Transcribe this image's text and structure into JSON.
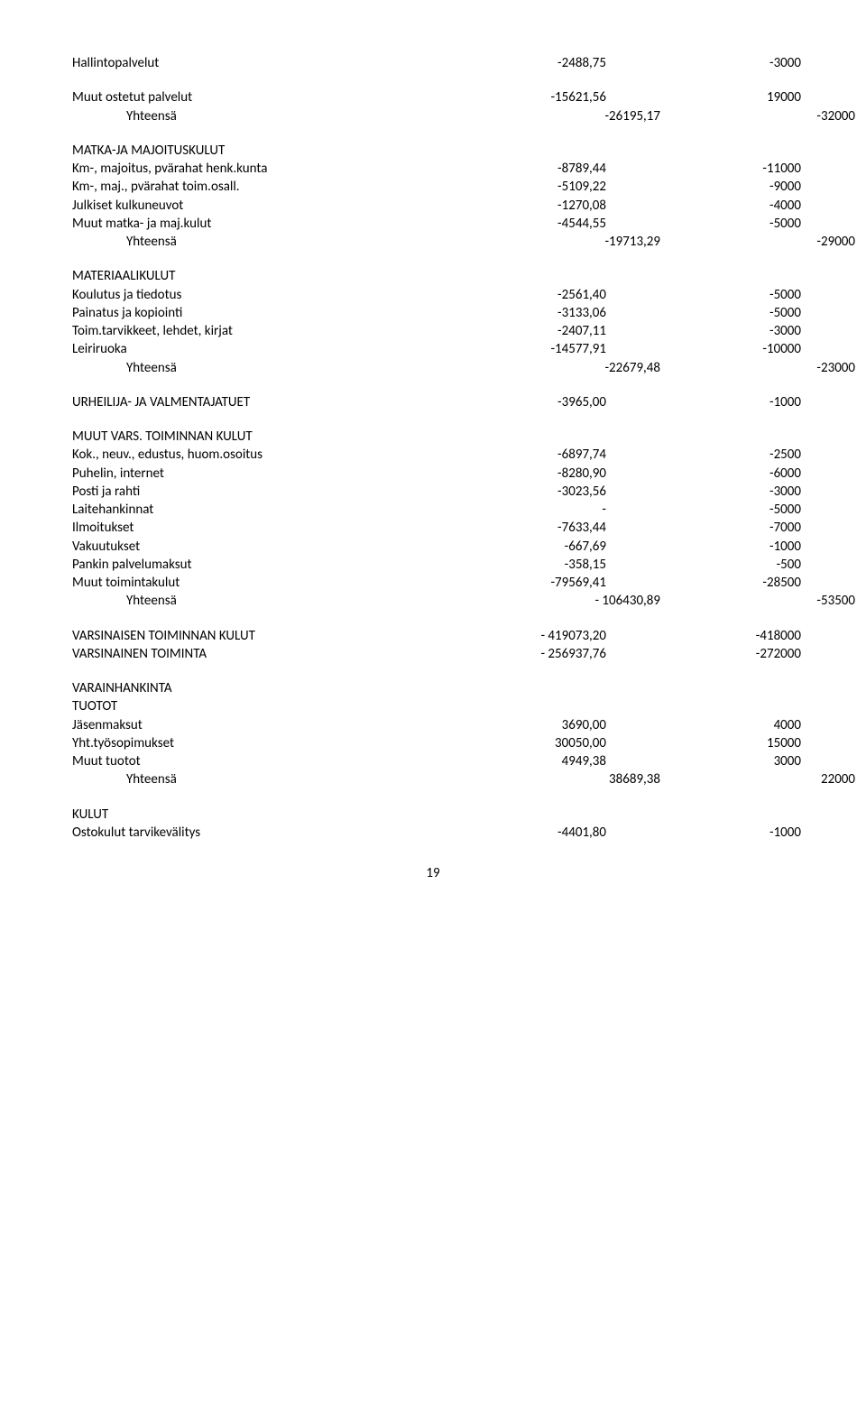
{
  "rows": [
    {
      "label": "Hallintopalvelut",
      "v1": "-2488,75",
      "v2": "-3000"
    },
    {
      "gap": true
    },
    {
      "label": "Muut ostetut palvelut",
      "v1": "-15621,56",
      "v2": "19000"
    },
    {
      "label": "Yhteensä",
      "indent": true,
      "v1": "-26195,17",
      "v2": "-32000"
    },
    {
      "gap": true
    },
    {
      "label": "MATKA-JA MAJOITUSKULUT",
      "v1": "",
      "v2": ""
    },
    {
      "label": "Km-, majoitus, pvärahat henk.kunta",
      "v1": "-8789,44",
      "v2": "-11000"
    },
    {
      "label": "Km-, maj., pvärahat toim.osall.",
      "v1": "-5109,22",
      "v2": "-9000"
    },
    {
      "label": "Julkiset kulkuneuvot",
      "v1": "-1270,08",
      "v2": "-4000"
    },
    {
      "label": "Muut matka- ja maj.kulut",
      "v1": "-4544,55",
      "v2": "-5000"
    },
    {
      "label": "Yhteensä",
      "indent": true,
      "v1": "-19713,29",
      "v2": "-29000"
    },
    {
      "gap": true
    },
    {
      "label": "MATERIAALIKULUT",
      "v1": "",
      "v2": ""
    },
    {
      "label": "Koulutus ja tiedotus",
      "v1": "-2561,40",
      "v2": "-5000"
    },
    {
      "label": "Painatus ja kopiointi",
      "v1": "-3133,06",
      "v2": "-5000"
    },
    {
      "label": "Toim.tarvikkeet, lehdet, kirjat",
      "v1": "-2407,11",
      "v2": "-3000"
    },
    {
      "label": "Leiriruoka",
      "v1": "-14577,91",
      "v2": "-10000"
    },
    {
      "label": "Yhteensä",
      "indent": true,
      "v1": "-22679,48",
      "v2": "-23000"
    },
    {
      "gap": true
    },
    {
      "label": "URHEILIJA- JA VALMENTAJATUET",
      "v1": "-3965,00",
      "v2": "-1000"
    },
    {
      "gap": true
    },
    {
      "label": "MUUT VARS. TOIMINNAN KULUT",
      "v1": "",
      "v2": ""
    },
    {
      "label": "Kok., neuv., edustus, huom.osoitus",
      "v1": "-6897,74",
      "v2": "-2500"
    },
    {
      "label": "Puhelin, internet",
      "v1": "-8280,90",
      "v2": "-6000"
    },
    {
      "label": "Posti ja rahti",
      "v1": "-3023,56",
      "v2": "-3000"
    },
    {
      "label": "Laitehankinnat",
      "v1": "-",
      "v2": "-5000"
    },
    {
      "label": "Ilmoitukset",
      "v1": "-7633,44",
      "v2": "-7000"
    },
    {
      "label": "Vakuutukset",
      "v1": "-667,69",
      "v2": "-1000"
    },
    {
      "label": "Pankin palvelumaksut",
      "v1": "-358,15",
      "v2": "-500"
    },
    {
      "label": "Muut toimintakulut",
      "v1": "-79569,41",
      "v2": "-28500"
    },
    {
      "label": "Yhteensä",
      "indent": true,
      "v1": "-  106430,89",
      "v2": "-53500"
    },
    {
      "gap": true
    },
    {
      "label": "VARSINAISEN TOIMINNAN KULUT",
      "v1": "-  419073,20",
      "v2": "-418000"
    },
    {
      "label": "VARSINAINEN TOIMINTA",
      "v1": "-  256937,76",
      "v2": "-272000"
    },
    {
      "gap": true
    },
    {
      "label": "VARAINHANKINTA",
      "v1": "",
      "v2": ""
    },
    {
      "label": "TUOTOT",
      "v1": "",
      "v2": ""
    },
    {
      "label": "Jäsenmaksut",
      "v1": "3690,00",
      "v2": "4000"
    },
    {
      "label": "Yht.työsopimukset",
      "v1": "30050,00",
      "v2": "15000"
    },
    {
      "label": "Muut tuotot",
      "v1": "4949,38",
      "v2": "3000"
    },
    {
      "label": "Yhteensä",
      "indent": true,
      "v1": "38689,38",
      "v2": "22000"
    },
    {
      "gap": true
    },
    {
      "label": "KULUT",
      "v1": "",
      "v2": ""
    },
    {
      "label": "Ostokulut tarvikevälitys",
      "v1": "-4401,80",
      "v2": "-1000"
    }
  ],
  "pageNumber": "19"
}
